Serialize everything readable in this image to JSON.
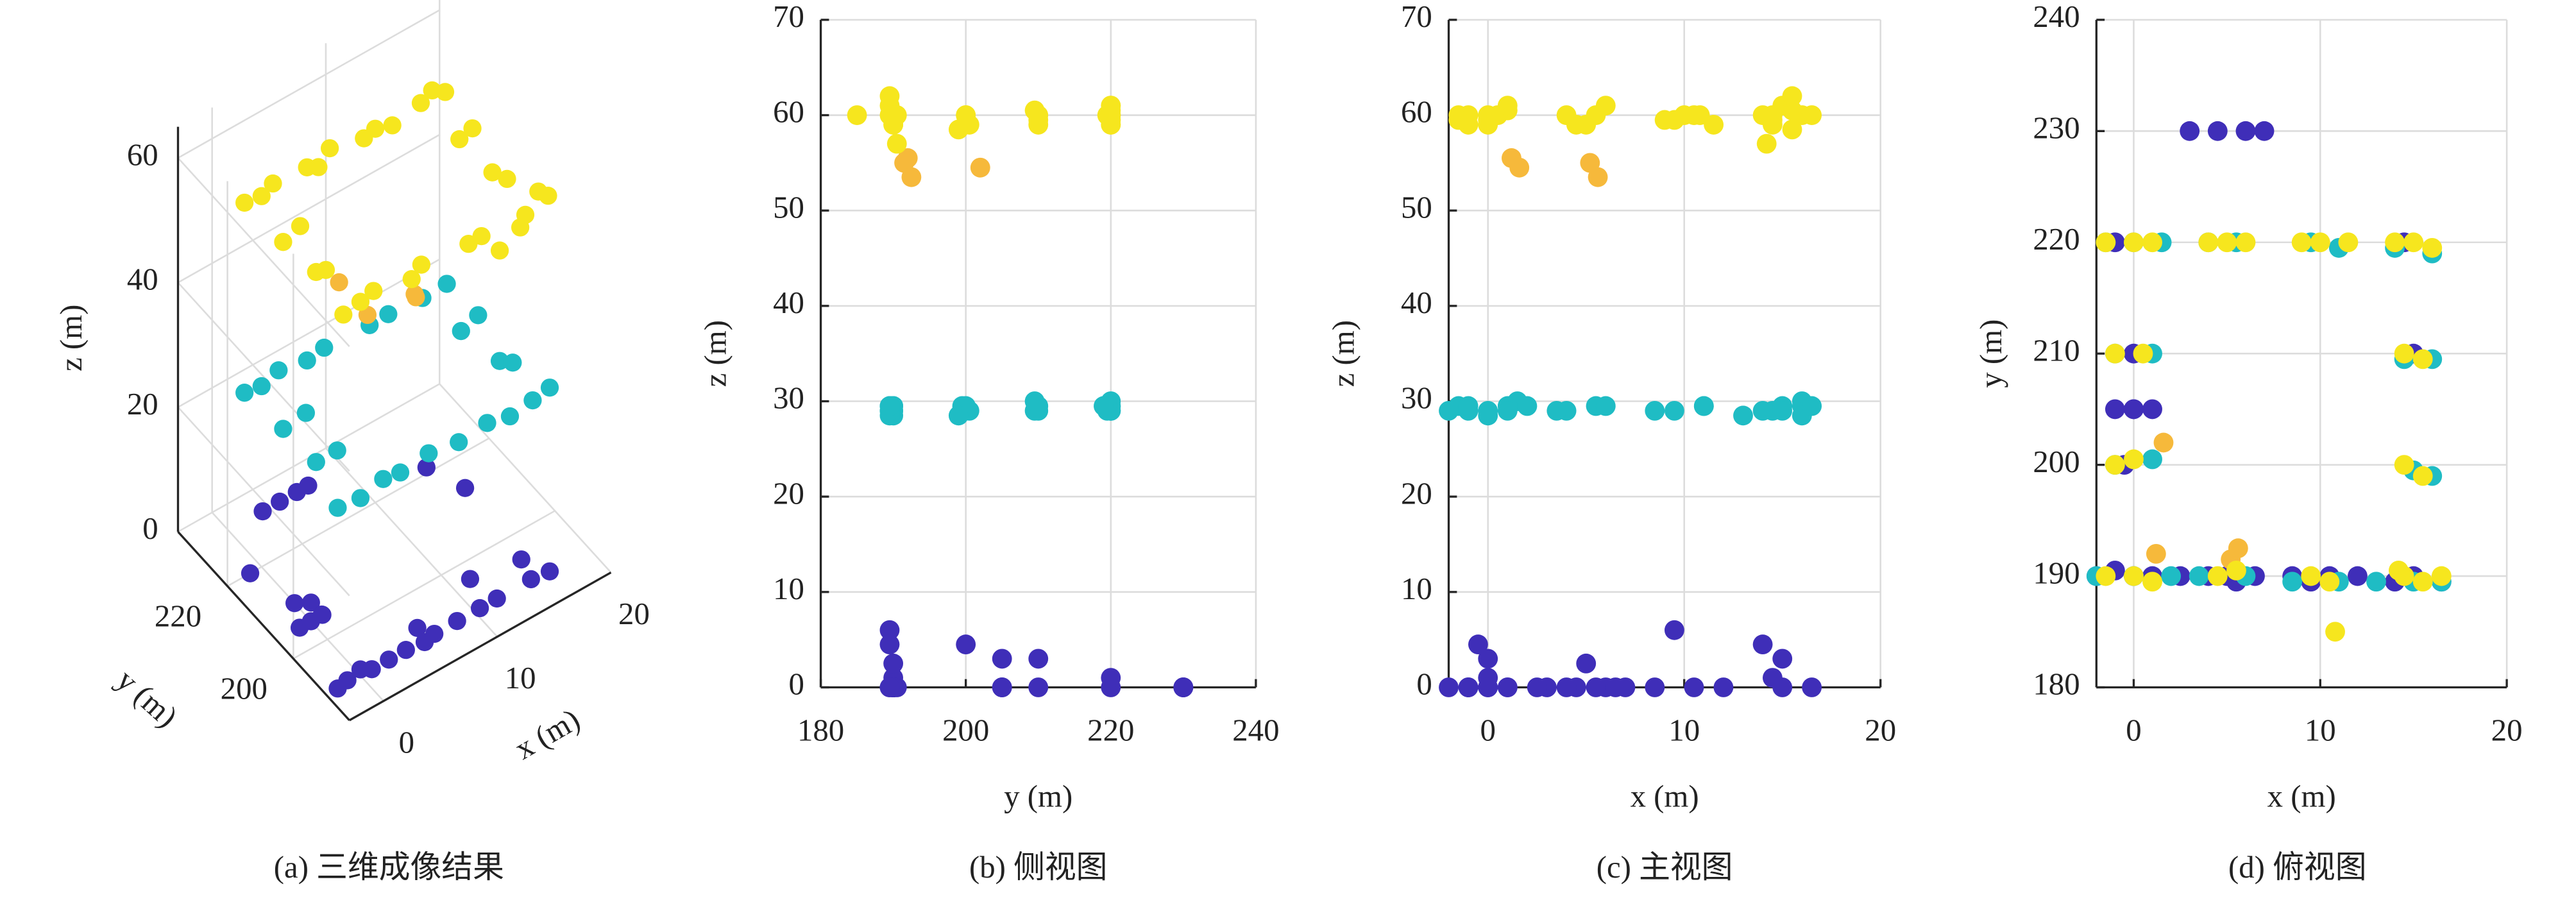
{
  "chart_data": [
    {
      "type": "scatter3d",
      "caption": "(a) 三维成像结果",
      "xlabel": "x (m)",
      "ylabel": "y (m)",
      "zlabel": "z (m)",
      "xlim": [
        -3,
        20
      ],
      "xticks": [
        0,
        10,
        20
      ],
      "ylim": [
        183,
        235
      ],
      "yticks": [
        200,
        220
      ],
      "zlim": [
        0,
        65
      ],
      "zticks": [
        0,
        20,
        40,
        60
      ],
      "grid": true,
      "series": [
        {
          "color": "#3f2eb8",
          "x": [
            3,
            4.5,
            6,
            7,
            -1,
            0,
            1,
            0,
            -2,
            -1,
            0,
            1,
            2.5,
            4,
            5,
            5.5,
            6.5,
            8.5,
            9.5,
            10.5,
            12,
            14,
            15,
            16.5,
            -1,
            14.5,
            0,
            15,
            -0.5
          ],
          "y": [
            230,
            230,
            230,
            230,
            205,
            205,
            205,
            205,
            190,
            190.5,
            190,
            190,
            190,
            190,
            190,
            189.5,
            190,
            190,
            189.5,
            190,
            190,
            189.5,
            190,
            189.5,
            220,
            220,
            210,
            210,
            200
          ],
          "z": [
            0,
            0,
            0,
            0,
            0,
            0,
            0,
            3,
            0,
            0,
            1,
            0,
            0,
            0,
            2.5,
            0,
            0,
            0,
            6,
            0,
            0,
            4.5,
            0,
            0,
            0,
            1,
            0,
            3,
            4.5
          ]
        },
        {
          "color": "#1fbcc4",
          "x": [
            -1.5,
            0,
            1.5,
            4,
            5.5,
            9.5,
            11,
            14,
            16,
            -1,
            1,
            14.5,
            16,
            -1,
            1,
            15,
            16,
            -2,
            0,
            2,
            3.5,
            6,
            8.5,
            11,
            13,
            15,
            16.5
          ],
          "y": [
            220,
            220,
            220,
            220,
            220,
            220,
            219.5,
            219.5,
            219,
            210,
            210,
            209.5,
            209.5,
            200,
            200.5,
            199.5,
            199,
            190,
            190,
            190,
            190,
            190,
            189.5,
            189.5,
            189.5,
            189.5,
            189.5
          ],
          "z": [
            29.5,
            29,
            30,
            29,
            29.5,
            29,
            29.5,
            29,
            29.5,
            29,
            29.5,
            29,
            30,
            29.5,
            29,
            29.5,
            28.5,
            29,
            28.5,
            29.5,
            29,
            29.5,
            29,
            29.5,
            28.5,
            29,
            29.5
          ]
        },
        {
          "color": "#f6b93b",
          "x": [
            1.2,
            1.6,
            5.2,
            5.6
          ],
          "y": [
            192,
            202,
            191.5,
            192.5
          ],
          "z": [
            55.5,
            54.5,
            55,
            53.5
          ]
        },
        {
          "color": "#f6e61e",
          "x": [
            -1.5,
            0,
            1,
            4,
            5,
            6,
            9,
            10,
            11.5,
            14,
            15,
            16,
            -1,
            0.5,
            14.5,
            15.5,
            -1,
            0,
            14.5,
            15.5,
            -1.5,
            0,
            1,
            4.5,
            5.5,
            9.5,
            10.5,
            14.5,
            15.5,
            16.5,
            10.8,
            14.2
          ],
          "y": [
            220,
            220,
            220,
            220,
            220,
            220,
            220,
            220,
            220,
            220,
            220,
            219.5,
            210,
            210,
            210,
            209.5,
            200,
            200.5,
            200,
            199,
            190,
            190,
            189.5,
            190,
            190.5,
            190,
            189.5,
            190,
            189.5,
            190,
            185,
            190.5
          ],
          "z": [
            60,
            59.5,
            60.5,
            60,
            59,
            61,
            59.5,
            60,
            59,
            60,
            61,
            60,
            59,
            60,
            59.5,
            60.5,
            60,
            59,
            60,
            58.5,
            59.5,
            60,
            61,
            59,
            60,
            59.5,
            60,
            59,
            62,
            60,
            60,
            57
          ]
        }
      ]
    },
    {
      "type": "scatter",
      "caption": "(b) 侧视图",
      "xlabel": "y (m)",
      "ylabel": "z (m)",
      "xlim": [
        180,
        240
      ],
      "xticks": [
        180,
        200,
        220,
        240
      ],
      "ylim": [
        0,
        70
      ],
      "yticks": [
        0,
        10,
        20,
        30,
        40,
        50,
        60,
        70
      ],
      "grid": true,
      "series": [
        {
          "color": "#3f2eb8",
          "x": [
            230,
            230,
            230,
            230,
            205,
            205,
            205,
            205,
            190,
            190.5,
            190,
            190,
            190,
            190,
            190,
            189.5,
            190,
            190,
            189.5,
            190,
            190,
            189.5,
            190,
            189.5,
            220,
            220,
            210,
            210,
            200
          ],
          "y": [
            0,
            0,
            0,
            0,
            0,
            0,
            0,
            3,
            0,
            0,
            1,
            0,
            0,
            0,
            2.5,
            0,
            0,
            0,
            6,
            0,
            0,
            4.5,
            0,
            0,
            0,
            1,
            0,
            3,
            4.5
          ]
        },
        {
          "color": "#1fbcc4",
          "x": [
            220,
            220,
            220,
            220,
            220,
            220,
            219.5,
            219.5,
            219,
            210,
            210,
            209.5,
            209.5,
            200,
            200.5,
            199.5,
            199,
            190,
            190,
            190,
            190,
            190,
            189.5,
            189.5,
            189.5,
            189.5,
            189.5
          ],
          "y": [
            29.5,
            29,
            30,
            29,
            29.5,
            29,
            29.5,
            29,
            29.5,
            29,
            29.5,
            29,
            30,
            29.5,
            29,
            29.5,
            28.5,
            29,
            28.5,
            29.5,
            29,
            29.5,
            29,
            29.5,
            28.5,
            29,
            29.5
          ]
        },
        {
          "color": "#f6b93b",
          "x": [
            192,
            202,
            191.5,
            192.5
          ],
          "y": [
            55.5,
            54.5,
            55,
            53.5
          ]
        },
        {
          "color": "#f6e61e",
          "x": [
            220,
            220,
            220,
            220,
            220,
            220,
            220,
            220,
            220,
            220,
            220,
            219.5,
            210,
            210,
            210,
            209.5,
            200,
            200.5,
            200,
            199,
            190,
            190,
            189.5,
            190,
            190.5,
            190,
            189.5,
            190,
            189.5,
            190,
            185,
            190.5
          ],
          "y": [
            60,
            59.5,
            60.5,
            60,
            59,
            61,
            59.5,
            60,
            59,
            60,
            61,
            60,
            59,
            60,
            59.5,
            60.5,
            60,
            59,
            60,
            58.5,
            59.5,
            60,
            61,
            59,
            60,
            59.5,
            60,
            59,
            62,
            60,
            60,
            57
          ]
        }
      ]
    },
    {
      "type": "scatter",
      "caption": "(c) 主视图",
      "xlabel": "x (m)",
      "ylabel": "z (m)",
      "xlim": [
        -2,
        20
      ],
      "xticks": [
        0,
        10,
        20
      ],
      "ylim": [
        0,
        70
      ],
      "yticks": [
        0,
        10,
        20,
        30,
        40,
        50,
        60,
        70
      ],
      "grid": true,
      "series": [
        {
          "color": "#3f2eb8",
          "x": [
            3,
            4.5,
            6,
            7,
            -1,
            0,
            1,
            0,
            -2,
            -1,
            0,
            1,
            2.5,
            4,
            5,
            5.5,
            6.5,
            8.5,
            9.5,
            10.5,
            12,
            14,
            15,
            16.5,
            -1,
            14.5,
            0,
            15,
            -0.5
          ],
          "y": [
            0,
            0,
            0,
            0,
            0,
            0,
            0,
            3,
            0,
            0,
            1,
            0,
            0,
            0,
            2.5,
            0,
            0,
            0,
            6,
            0,
            0,
            4.5,
            0,
            0,
            0,
            1,
            0,
            3,
            4.5
          ]
        },
        {
          "color": "#1fbcc4",
          "x": [
            -1.5,
            0,
            1.5,
            4,
            5.5,
            9.5,
            11,
            14,
            16,
            -1,
            1,
            14.5,
            16,
            -1,
            1,
            15,
            16,
            -2,
            0,
            2,
            3.5,
            6,
            8.5,
            11,
            13,
            15,
            16.5
          ],
          "y": [
            29.5,
            29,
            30,
            29,
            29.5,
            29,
            29.5,
            29,
            29.5,
            29,
            29.5,
            29,
            30,
            29.5,
            29,
            29.5,
            28.5,
            29,
            28.5,
            29.5,
            29,
            29.5,
            29,
            29.5,
            28.5,
            29,
            29.5
          ]
        },
        {
          "color": "#f6b93b",
          "x": [
            1.2,
            1.6,
            5.2,
            5.6
          ],
          "y": [
            55.5,
            54.5,
            55,
            53.5
          ]
        },
        {
          "color": "#f6e61e",
          "x": [
            -1.5,
            0,
            1,
            4,
            5,
            6,
            9,
            10,
            11.5,
            14,
            15,
            16,
            -1,
            0.5,
            14.5,
            15.5,
            -1,
            0,
            14.5,
            15.5,
            -1.5,
            0,
            1,
            4.5,
            5.5,
            9.5,
            10.5,
            14.5,
            15.5,
            16.5,
            10.8,
            14.2
          ],
          "y": [
            60,
            59.5,
            60.5,
            60,
            59,
            61,
            59.5,
            60,
            59,
            60,
            61,
            60,
            59,
            60,
            59.5,
            60.5,
            60,
            59,
            60,
            58.5,
            59.5,
            60,
            61,
            59,
            60,
            59.5,
            60,
            59,
            62,
            60,
            60,
            57
          ]
        }
      ]
    },
    {
      "type": "scatter",
      "caption": "(d) 俯视图",
      "xlabel": "x (m)",
      "ylabel": "y (m)",
      "xlim": [
        -2,
        20
      ],
      "xticks": [
        0,
        10,
        20
      ],
      "ylim": [
        180,
        240
      ],
      "yticks": [
        180,
        190,
        200,
        210,
        220,
        230,
        240
      ],
      "grid": true,
      "series": [
        {
          "color": "#3f2eb8",
          "x": [
            3,
            4.5,
            6,
            7,
            -1,
            0,
            1,
            0,
            -2,
            -1,
            0,
            1,
            2.5,
            4,
            5,
            5.5,
            6.5,
            8.5,
            9.5,
            10.5,
            12,
            14,
            15,
            16.5,
            -1,
            14.5,
            0,
            15,
            -0.5
          ],
          "y": [
            230,
            230,
            230,
            230,
            205,
            205,
            205,
            205,
            190,
            190.5,
            190,
            190,
            190,
            190,
            190,
            189.5,
            190,
            190,
            189.5,
            190,
            190,
            189.5,
            190,
            189.5,
            220,
            220,
            210,
            210,
            200
          ]
        },
        {
          "color": "#1fbcc4",
          "x": [
            -1.5,
            0,
            1.5,
            4,
            5.5,
            9.5,
            11,
            14,
            16,
            -1,
            1,
            14.5,
            16,
            -1,
            1,
            15,
            16,
            -2,
            0,
            2,
            3.5,
            6,
            8.5,
            11,
            13,
            15,
            16.5
          ],
          "y": [
            220,
            220,
            220,
            220,
            220,
            220,
            219.5,
            219.5,
            219,
            210,
            210,
            209.5,
            209.5,
            200,
            200.5,
            199.5,
            199,
            190,
            190,
            190,
            190,
            190,
            189.5,
            189.5,
            189.5,
            189.5,
            189.5
          ]
        },
        {
          "color": "#f6b93b",
          "x": [
            1.2,
            1.6,
            5.2,
            5.6
          ],
          "y": [
            192,
            202,
            191.5,
            192.5
          ]
        },
        {
          "color": "#f6e61e",
          "x": [
            -1.5,
            0,
            1,
            4,
            5,
            6,
            9,
            10,
            11.5,
            14,
            15,
            16,
            -1,
            0.5,
            14.5,
            15.5,
            -1,
            0,
            14.5,
            15.5,
            -1.5,
            0,
            1,
            4.5,
            5.5,
            9.5,
            10.5,
            14.5,
            15.5,
            16.5,
            10.8,
            14.2
          ],
          "y": [
            220,
            220,
            220,
            220,
            220,
            220,
            220,
            220,
            220,
            220,
            220,
            219.5,
            210,
            210,
            210,
            209.5,
            200,
            200.5,
            200,
            199,
            190,
            190,
            189.5,
            190,
            190.5,
            190,
            189.5,
            190,
            189.5,
            190,
            185,
            190.5
          ]
        }
      ]
    }
  ]
}
